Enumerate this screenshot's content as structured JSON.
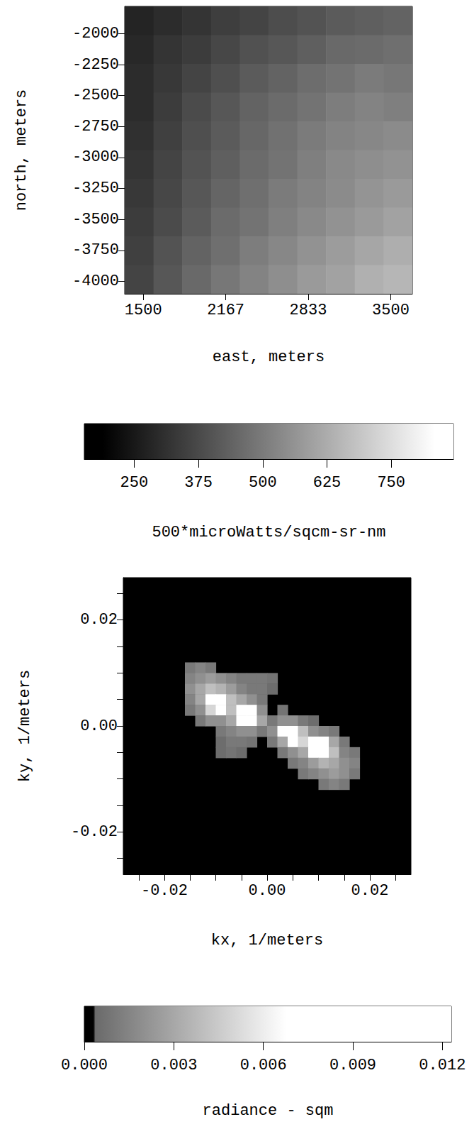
{
  "chart_data": [
    {
      "type": "heatmap",
      "x_label": "east, meters",
      "y_label": "north, meters",
      "x": [
        1466,
        1699,
        1931,
        2164,
        2396,
        2629,
        2861,
        3094,
        3326,
        3559
      ],
      "y": [
        -1896,
        -2128,
        -2360,
        -2592,
        -2824,
        -3056,
        -3288,
        -3520,
        -3752,
        -3984
      ],
      "values": [
        [
          280,
          300,
          320,
          345,
          360,
          385,
          400,
          420,
          430,
          440
        ],
        [
          290,
          320,
          340,
          370,
          395,
          410,
          430,
          455,
          460,
          470
        ],
        [
          300,
          330,
          360,
          390,
          420,
          440,
          465,
          480,
          500,
          490
        ],
        [
          300,
          340,
          380,
          410,
          440,
          460,
          480,
          505,
          520,
          510
        ],
        [
          310,
          350,
          390,
          420,
          450,
          475,
          500,
          520,
          530,
          540
        ],
        [
          320,
          360,
          400,
          430,
          460,
          480,
          510,
          535,
          550,
          560
        ],
        [
          330,
          370,
          410,
          445,
          470,
          500,
          520,
          540,
          565,
          580
        ],
        [
          340,
          380,
          420,
          460,
          480,
          510,
          535,
          560,
          580,
          600
        ],
        [
          350,
          400,
          440,
          470,
          505,
          530,
          560,
          585,
          610,
          630
        ],
        [
          360,
          410,
          455,
          490,
          520,
          550,
          580,
          600,
          635,
          650
        ]
      ],
      "xlim": [
        1350,
        3675
      ],
      "ylim": [
        -4100,
        -1780
      ],
      "xticks": [
        1500,
        2167,
        2833,
        3500
      ],
      "yticks": [
        -4000,
        -3750,
        -3500,
        -3250,
        -3000,
        -2750,
        -2500,
        -2250,
        -2000
      ],
      "colorbar": {
        "label": "500*microWatts/sqcm-sr-nm",
        "lim": [
          153,
          871
        ],
        "ticks": [
          250,
          375,
          500,
          625,
          750
        ]
      }
    },
    {
      "type": "heatmap",
      "x_label": "kx, 1/meters",
      "y_label": "ky, 1/meters",
      "cells": [
        [
          -0.015,
          0.011,
          0.001
        ],
        [
          -0.013,
          0.011,
          0.0015
        ],
        [
          -0.011,
          0.011,
          0.001
        ],
        [
          -0.015,
          0.009,
          0.0015
        ],
        [
          -0.013,
          0.009,
          0.002
        ],
        [
          -0.011,
          0.009,
          0.0025
        ],
        [
          -0.009,
          0.009,
          0.002
        ],
        [
          -0.007,
          0.009,
          0.0015
        ],
        [
          -0.005,
          0.009,
          0.001
        ],
        [
          -0.003,
          0.009,
          0.001
        ],
        [
          -0.001,
          0.009,
          0.001
        ],
        [
          0.001,
          0.009,
          0.0008
        ],
        [
          -0.015,
          0.007,
          0.002
        ],
        [
          -0.013,
          0.007,
          0.003
        ],
        [
          -0.011,
          0.007,
          0.004
        ],
        [
          -0.009,
          0.007,
          0.0035
        ],
        [
          -0.007,
          0.007,
          0.0025
        ],
        [
          -0.005,
          0.007,
          0.0015
        ],
        [
          -0.003,
          0.007,
          0.001
        ],
        [
          -0.001,
          0.007,
          0.001
        ],
        [
          0.001,
          0.007,
          0.0005
        ],
        [
          -0.015,
          0.005,
          0.0015
        ],
        [
          -0.013,
          0.005,
          0.003
        ],
        [
          -0.011,
          0.005,
          0.008
        ],
        [
          -0.009,
          0.005,
          0.012
        ],
        [
          -0.007,
          0.005,
          0.004
        ],
        [
          -0.005,
          0.005,
          0.003
        ],
        [
          -0.003,
          0.005,
          0.002
        ],
        [
          -0.001,
          0.005,
          0.001
        ],
        [
          -0.015,
          0.003,
          0.001
        ],
        [
          -0.013,
          0.003,
          0.002
        ],
        [
          -0.011,
          0.003,
          0.005
        ],
        [
          -0.009,
          0.003,
          0.007
        ],
        [
          -0.007,
          0.003,
          0.004
        ],
        [
          -0.005,
          0.003,
          0.007
        ],
        [
          -0.003,
          0.003,
          0.009
        ],
        [
          -0.001,
          0.003,
          0.002
        ],
        [
          0.003,
          0.003,
          0.0008
        ],
        [
          -0.013,
          0.001,
          0.001
        ],
        [
          -0.011,
          0.001,
          0.002
        ],
        [
          -0.009,
          0.001,
          0.002
        ],
        [
          -0.007,
          0.001,
          0.003
        ],
        [
          -0.005,
          0.001,
          0.008
        ],
        [
          -0.003,
          0.001,
          0.011
        ],
        [
          -0.001,
          0.001,
          0.003
        ],
        [
          0.001,
          0.001,
          0.001
        ],
        [
          0.003,
          0.001,
          0.002
        ],
        [
          0.005,
          0.001,
          0.002
        ],
        [
          0.007,
          0.001,
          0.001
        ],
        [
          0.009,
          0.001,
          0.0005
        ],
        [
          -0.009,
          -0.001,
          0.001
        ],
        [
          -0.007,
          -0.001,
          0.0015
        ],
        [
          -0.005,
          -0.001,
          0.002
        ],
        [
          -0.003,
          -0.001,
          0.002
        ],
        [
          -0.001,
          -0.001,
          0.001
        ],
        [
          0.001,
          -0.001,
          0.002
        ],
        [
          0.003,
          -0.001,
          0.008
        ],
        [
          0.005,
          -0.001,
          0.011
        ],
        [
          0.007,
          -0.001,
          0.004
        ],
        [
          0.009,
          -0.001,
          0.002
        ],
        [
          0.011,
          -0.001,
          0.0015
        ],
        [
          0.013,
          -0.001,
          0.001
        ],
        [
          -0.009,
          -0.003,
          0.0005
        ],
        [
          -0.007,
          -0.003,
          0.001
        ],
        [
          -0.005,
          -0.003,
          0.001
        ],
        [
          -0.003,
          -0.003,
          0.0008
        ],
        [
          0.001,
          -0.003,
          0.001
        ],
        [
          0.003,
          -0.003,
          0.003
        ],
        [
          0.005,
          -0.003,
          0.007
        ],
        [
          0.007,
          -0.003,
          0.005
        ],
        [
          0.009,
          -0.003,
          0.007
        ],
        [
          0.011,
          -0.003,
          0.009
        ],
        [
          0.013,
          -0.003,
          0.003
        ],
        [
          0.015,
          -0.003,
          0.001
        ],
        [
          -0.009,
          -0.005,
          0.0005
        ],
        [
          -0.007,
          -0.005,
          0.0008
        ],
        [
          -0.005,
          -0.005,
          0.0005
        ],
        [
          0.003,
          -0.005,
          0.001
        ],
        [
          0.005,
          -0.005,
          0.002
        ],
        [
          0.007,
          -0.005,
          0.003
        ],
        [
          0.009,
          -0.005,
          0.008
        ],
        [
          0.011,
          -0.005,
          0.012
        ],
        [
          0.013,
          -0.005,
          0.004
        ],
        [
          0.015,
          -0.005,
          0.0015
        ],
        [
          0.017,
          -0.005,
          0.001
        ],
        [
          0.005,
          -0.007,
          0.001
        ],
        [
          0.007,
          -0.007,
          0.0015
        ],
        [
          0.009,
          -0.007,
          0.0025
        ],
        [
          0.011,
          -0.007,
          0.0035
        ],
        [
          0.013,
          -0.007,
          0.003
        ],
        [
          0.015,
          -0.007,
          0.002
        ],
        [
          0.017,
          -0.007,
          0.0015
        ],
        [
          0.007,
          -0.009,
          0.001
        ],
        [
          0.009,
          -0.009,
          0.0015
        ],
        [
          0.011,
          -0.009,
          0.002
        ],
        [
          0.013,
          -0.009,
          0.0025
        ],
        [
          0.015,
          -0.009,
          0.002
        ],
        [
          0.017,
          -0.009,
          0.001
        ],
        [
          0.011,
          -0.011,
          0.001
        ],
        [
          0.013,
          -0.011,
          0.0015
        ],
        [
          0.015,
          -0.011,
          0.001
        ]
      ],
      "xlim": [
        -0.028,
        0.028
      ],
      "ylim": [
        -0.028,
        0.028
      ],
      "xticks": [
        -0.02,
        {
          "value": 0,
          "label": "0.00"
        },
        0.02
      ],
      "yticks": [
        -0.02,
        {
          "value": 0,
          "label": "0.00"
        },
        0.02
      ],
      "colorbar": {
        "label": "radiance - sqm",
        "lim": [
          0,
          0.0123
        ],
        "ticks": [
          {
            "value": 0,
            "label": "0.000"
          },
          0.003,
          0.006,
          0.009,
          0.012
        ]
      }
    }
  ]
}
